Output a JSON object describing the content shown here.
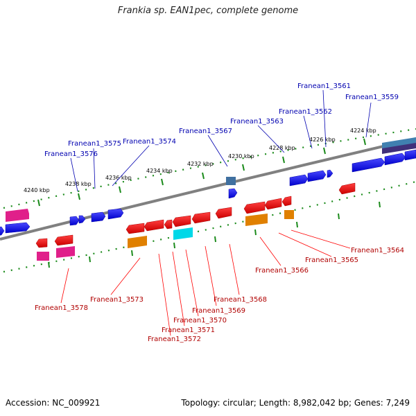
{
  "title": "Frankia sp. EAN1pec, complete genome",
  "footer": {
    "accession": "Accession: NC_009921",
    "summary": "Topology: circular; Length: 8,982,042 bp; Genes: 7,249"
  },
  "ticks": [
    "4224 kbp",
    "4226 kbp",
    "4228 kbp",
    "4230 kbp",
    "4232 kbp",
    "4234 kbp",
    "4236 kbp",
    "4238 kbp",
    "4240 kbp"
  ],
  "genes_forward": [
    "Franean1_3559",
    "Franean1_3561",
    "Franean1_3562",
    "Franean1_3563",
    "Franean1_3567",
    "Franean1_3574",
    "Franean1_3575",
    "Franean1_3576"
  ],
  "genes_reverse": [
    "Franean1_3564",
    "Franean1_3565",
    "Franean1_3566",
    "Franean1_3568",
    "Franean1_3569",
    "Franean1_3570",
    "Franean1_3571",
    "Franean1_3572",
    "Franean1_3573",
    "Franean1_3578"
  ],
  "colors": {
    "forward_cds": "#0000ee",
    "reverse_cds": "#ee0000",
    "forward_label": "#0000b0",
    "reverse_label": "#b00000",
    "rna_magenta": "#e0208a",
    "rna_orange": "#e08000",
    "rna_cyan": "#00d8e8",
    "rna_steel": "#4070a0",
    "backbone": "#808080",
    "tick": "#1a8a1a"
  }
}
